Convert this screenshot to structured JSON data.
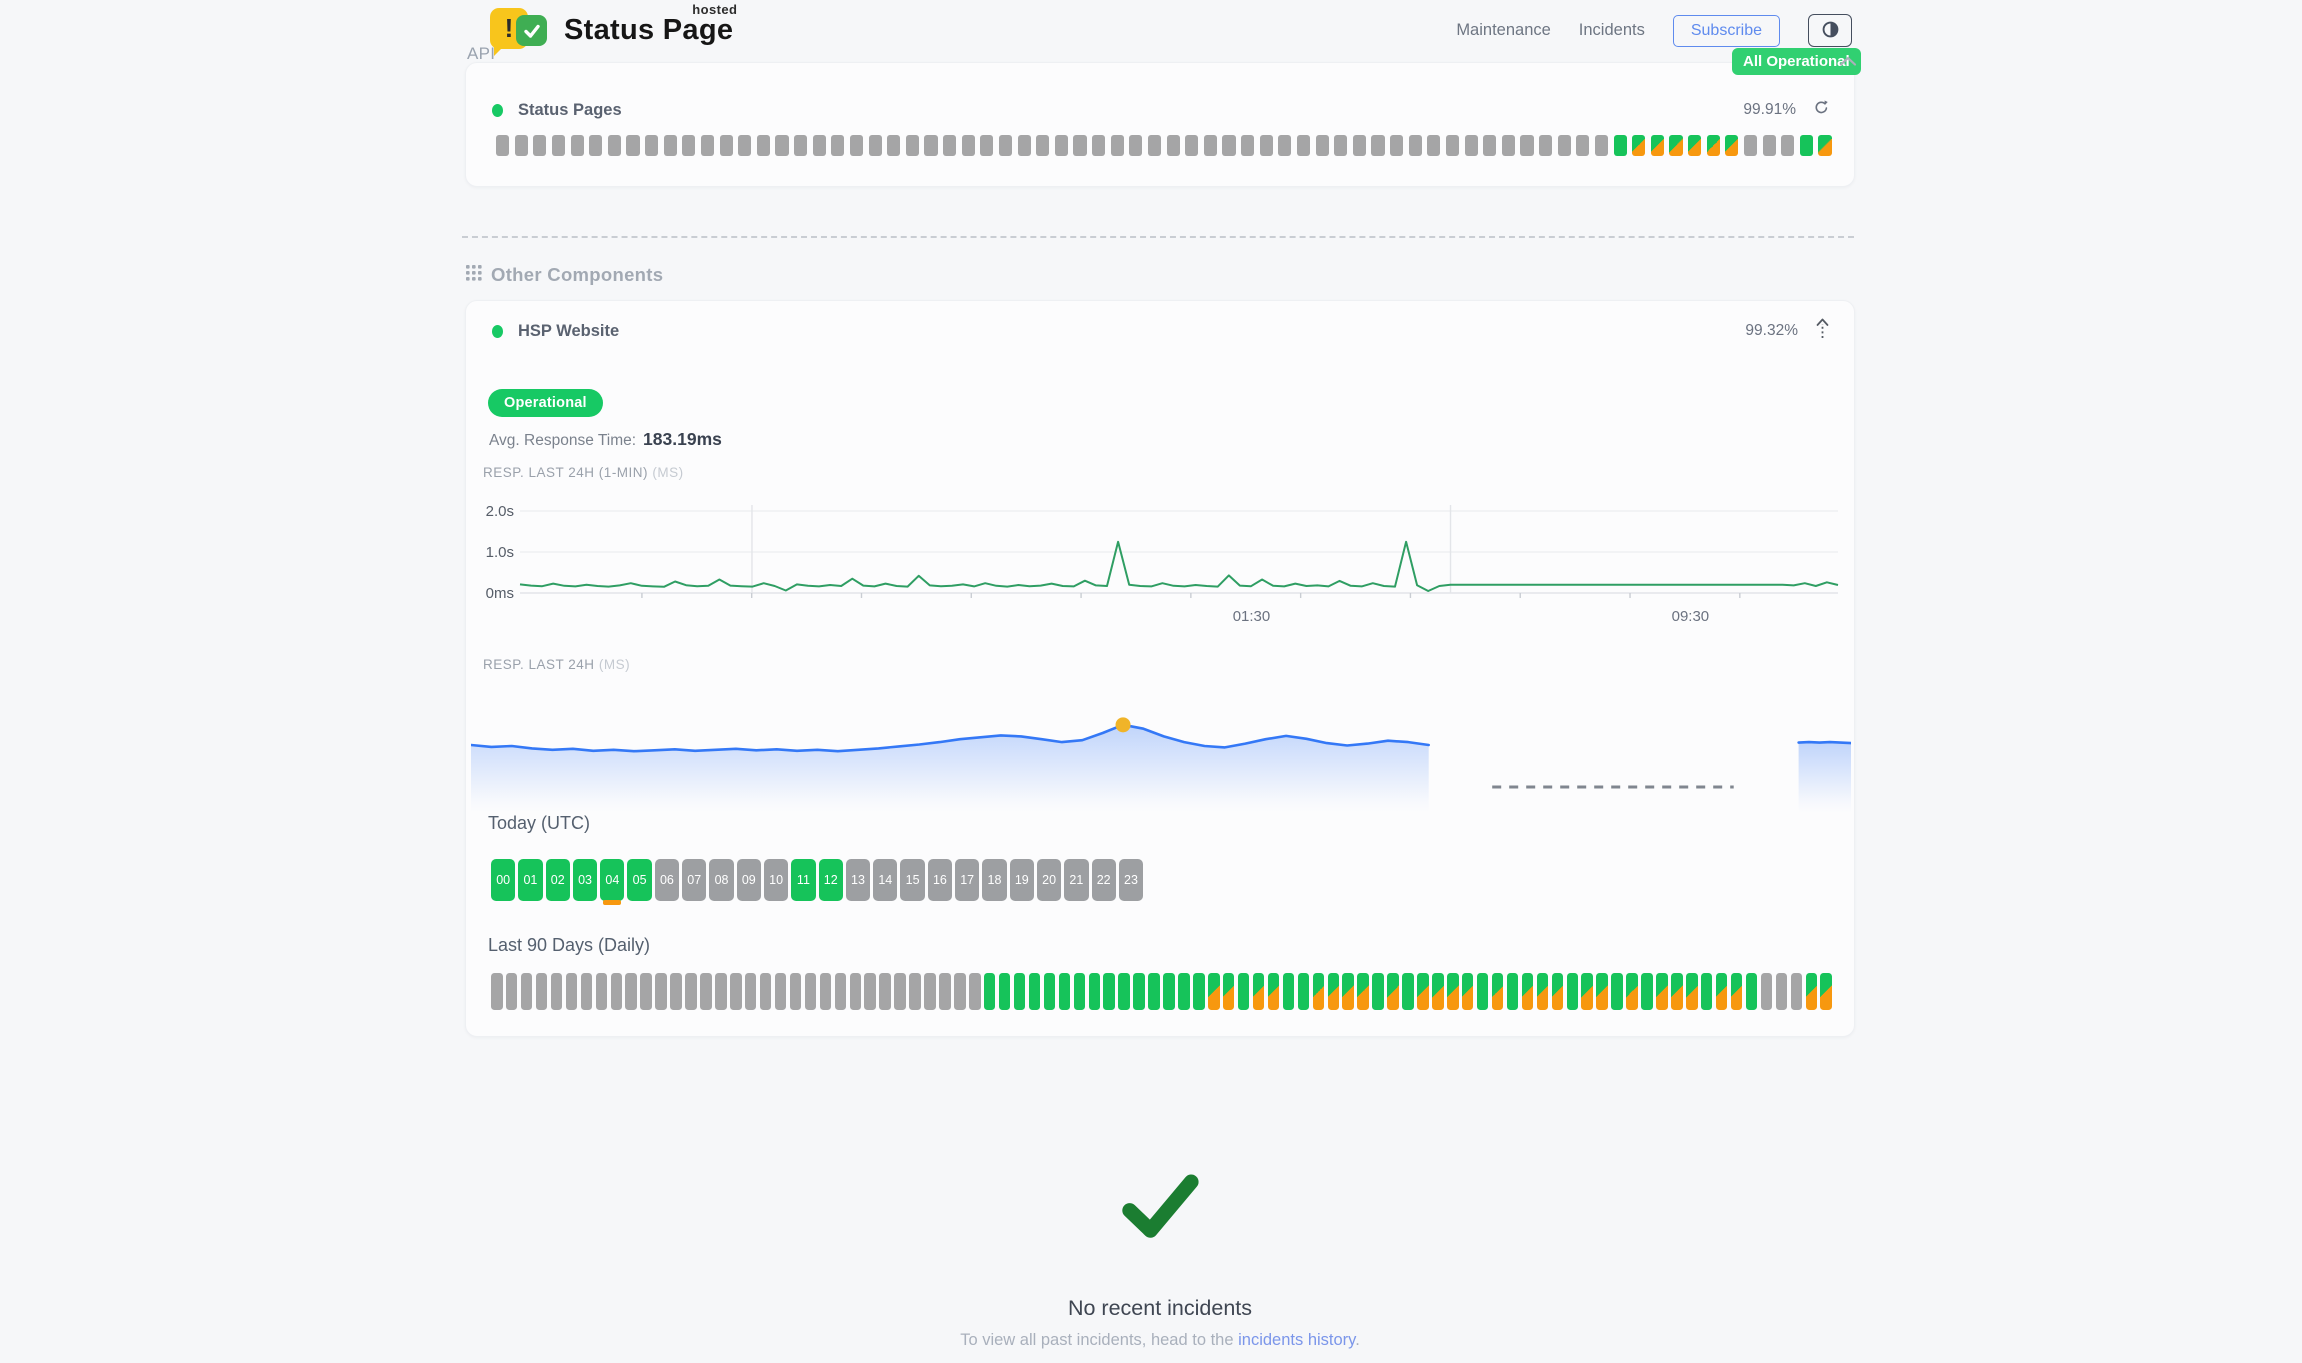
{
  "colors": {
    "green": "#16c35a",
    "orange": "#f7980f",
    "gray_bar": "#a5a5a6",
    "hour_gray": "#9d9fa2",
    "badge_green": "#31d071",
    "pill_green": "#17c964",
    "chart_green": "#2f9e63",
    "chart_blue": "#3478f6",
    "marker_yellow": "#f0b429",
    "check_green": "#1b7d31",
    "link_blue": "#7b96ea",
    "subscribe_blue": "#5f8bee"
  },
  "header": {
    "logo_title": "Status Page",
    "logo_superscript": "hosted",
    "logo_exclaim": "!",
    "nav": [
      {
        "label": "Maintenance"
      },
      {
        "label": "Incidents"
      }
    ],
    "subscribe_label": "Subscribe",
    "status_badge": "All Operational"
  },
  "api_section": {
    "title": "API",
    "component_name": "Status Pages",
    "uptime_pct": "99.91%",
    "bars": "ggggggggggggggggggggggggggggggggggggggggggggggggggggggggggggGSSSSSSgggGS"
  },
  "other_section": {
    "title": "Other Components",
    "component_name": "HSP Website",
    "uptime_pct": "99.32%",
    "status_label": "Operational",
    "avg_label": "Avg. Response Time:",
    "avg_value": "183.19ms",
    "chart1_label": "RESP. LAST 24H (1-MIN)",
    "chart1_unit": "(MS)",
    "chart2_label": "RESP. LAST 24H",
    "chart2_unit": "(MS)"
  },
  "today": {
    "title": "Today (UTC)",
    "hours": [
      {
        "label": "00",
        "state": "up"
      },
      {
        "label": "01",
        "state": "up"
      },
      {
        "label": "02",
        "state": "up"
      },
      {
        "label": "03",
        "state": "up"
      },
      {
        "label": "04",
        "state": "up-partial"
      },
      {
        "label": "05",
        "state": "up"
      },
      {
        "label": "06",
        "state": "unknown"
      },
      {
        "label": "07",
        "state": "unknown"
      },
      {
        "label": "08",
        "state": "unknown"
      },
      {
        "label": "09",
        "state": "unknown"
      },
      {
        "label": "10",
        "state": "unknown"
      },
      {
        "label": "11",
        "state": "up"
      },
      {
        "label": "12",
        "state": "up"
      },
      {
        "label": "13",
        "state": "unknown"
      },
      {
        "label": "14",
        "state": "unknown"
      },
      {
        "label": "15",
        "state": "unknown"
      },
      {
        "label": "16",
        "state": "unknown"
      },
      {
        "label": "17",
        "state": "unknown"
      },
      {
        "label": "18",
        "state": "unknown"
      },
      {
        "label": "19",
        "state": "unknown"
      },
      {
        "label": "20",
        "state": "unknown"
      },
      {
        "label": "21",
        "state": "unknown"
      },
      {
        "label": "22",
        "state": "unknown"
      },
      {
        "label": "23",
        "state": "unknown"
      }
    ]
  },
  "last90": {
    "title": "Last 90 Days (Daily)",
    "bars": "gggggggggggggggggggggggggggggggggGGGGGGGGGGGGGGGSSGSSGGSSSSGSGSSSSGSGSSSGSSGSGSSSGSSGgggSS"
  },
  "incidents": {
    "title": "No recent incidents",
    "subtitle_prefix": "To view all past incidents, head to the ",
    "link_text": "incidents history",
    "subtitle_suffix": "."
  },
  "chart_data": [
    {
      "type": "line",
      "title": "RESP. LAST 24H (1-MIN)",
      "unit": "MS",
      "ylabels": [
        "2.0s",
        "1.0s",
        "0ms"
      ],
      "ylim": [
        0,
        2000
      ],
      "xticks": [
        {
          "label": "01:30",
          "f": 0.555
        },
        {
          "label": "09:30",
          "f": 0.888
        }
      ],
      "vgridlines_f": [
        0.176,
        0.706
      ],
      "line_color": "#2f9e63",
      "values_ms": [
        210,
        180,
        165,
        230,
        175,
        160,
        200,
        170,
        155,
        185,
        240,
        175,
        160,
        150,
        280,
        190,
        165,
        175,
        330,
        180,
        165,
        155,
        240,
        170,
        60,
        210,
        175,
        160,
        195,
        170,
        350,
        180,
        160,
        230,
        170,
        155,
        420,
        185,
        165,
        175,
        210,
        160,
        240,
        175,
        155,
        195,
        165,
        180,
        230,
        170,
        160,
        300,
        185,
        170,
        1250,
        200,
        170,
        160,
        240,
        175,
        160,
        195,
        170,
        155,
        430,
        180,
        165,
        330,
        175,
        160,
        230,
        170,
        185,
        160,
        295,
        175,
        160,
        240,
        170,
        155,
        1250,
        190,
        50,
        170,
        200,
        200,
        200,
        200,
        200,
        200,
        200,
        200,
        200,
        200,
        200,
        200,
        200,
        200,
        200,
        200,
        200,
        200,
        200,
        200,
        200,
        200,
        200,
        200,
        200,
        200,
        200,
        200,
        200,
        200,
        200,
        185,
        240,
        170,
        260,
        195
      ]
    },
    {
      "type": "area",
      "title": "RESP. LAST 24H",
      "unit": "MS",
      "line_color": "#3478f6",
      "segments": [
        {
          "f_start": 0,
          "f_end": 0.694,
          "values_ms": [
            300,
            296,
            298,
            293,
            290,
            292,
            288,
            290,
            287,
            289,
            291,
            288,
            290,
            292,
            289,
            291,
            288,
            290,
            287,
            290,
            293,
            297,
            301,
            306,
            312,
            316,
            320,
            318,
            312,
            306,
            310,
            325,
            342,
            334,
            318,
            306,
            298,
            295,
            303,
            312,
            319,
            313,
            304,
            299,
            303,
            309,
            306,
            300
          ]
        },
        {
          "f_start": 0.962,
          "f_end": 1.0,
          "values_ms": [
            305,
            306,
            305,
            306,
            305,
            304
          ]
        }
      ],
      "marker": {
        "f": 0.4725,
        "value_ms": 342,
        "color": "#f0b429"
      },
      "gap_dash": {
        "f_start": 0.74,
        "f_end": 0.915
      }
    }
  ]
}
